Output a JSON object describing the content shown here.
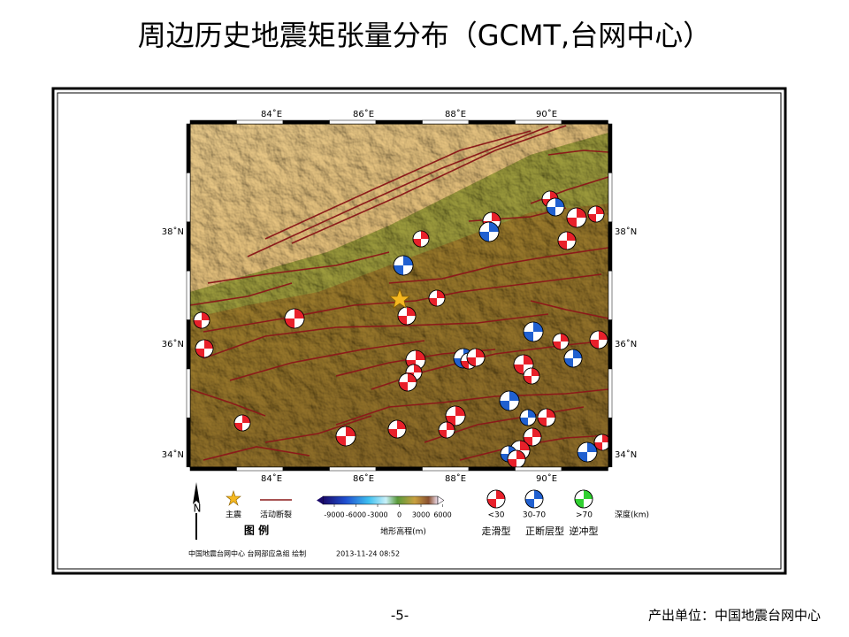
{
  "title": "周边历史地震矩张量分布（GCMT,台网中心）",
  "map": {
    "lon_labels": [
      "84˚E",
      "86˚E",
      "88˚E",
      "90˚E"
    ],
    "lat_labels": [
      "38˚N",
      "36˚N",
      "34˚N"
    ]
  },
  "legend": {
    "title": "图 例",
    "north": "N",
    "mainshock": "主震",
    "fault": "活动断裂",
    "colorbar": {
      "ticks": [
        -9000,
        -6000,
        -3000,
        0,
        3000,
        6000
      ],
      "label": "地形高程(m)"
    },
    "depth_classes": [
      "<30",
      "30-70",
      ">70"
    ],
    "depth_unit": "深度(km)",
    "mechanisms": [
      "走滑型",
      "正断层型",
      "逆冲型"
    ]
  },
  "credit": {
    "agency": "中国地震台网中心 台网部应急组 绘制",
    "time": "2013-11-24 08:52"
  },
  "footer": {
    "page": "-5-",
    "producer": "产出单位：中国地震台网中心"
  }
}
